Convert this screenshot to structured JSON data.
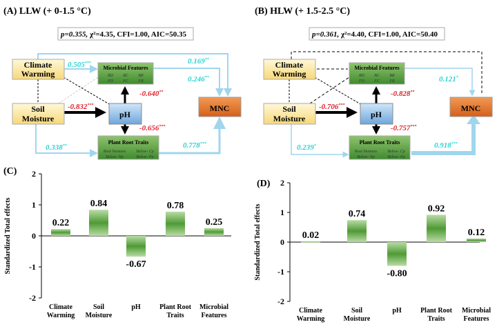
{
  "panels": [
    {
      "title": "(A) LLW (+ 0-1.5 °C)",
      "stat_p": "p=0.355,",
      "stat_rest": " χ²=4.35, CFI=1.00, AIC=50.35",
      "paths": {
        "cw_mf": "0.505",
        "cw_mf_sig": "***",
        "cw_mnc": "0.169",
        "cw_mnc_sig": "**",
        "mf_mnc": "0.246",
        "mf_mnc_sig": "**",
        "sm_ph": "-0.832",
        "sm_ph_sig": "***",
        "ph_mf": "-0.640",
        "ph_mf_sig": "**",
        "ph_prt": "-0.656",
        "ph_prt_sig": "***",
        "sm_prt": "0.338",
        "sm_prt_sig": "**",
        "prt_mnc": "0.778",
        "prt_mnc_sig": "***"
      }
    },
    {
      "title": "(B) HLW (+ 1.5-2.5 °C)",
      "stat_p": "p=0.361,",
      "stat_rest": " χ²=4.40, CFI=1.00, AIC=50.40",
      "paths": {
        "mf_mnc": "0.121",
        "mf_mnc_sig": "*",
        "sm_ph": "-0.706",
        "sm_ph_sig": "***",
        "ph_mf": "-0.828",
        "ph_mf_sig": "**",
        "ph_prt": "-0.757",
        "ph_prt_sig": "***",
        "sm_prt": "0.239",
        "sm_prt_sig": "*",
        "prt_mnc": "0.918",
        "prt_mnc_sig": "***"
      }
    }
  ],
  "nodes": {
    "cw1": "Climate",
    "cw2": "Warming",
    "sm1": "Soil",
    "sm2": "Moisture",
    "ph": "pH",
    "mnc": "MNC",
    "mf": "Microbial Features",
    "mf_sub": [
      "BD",
      "BC",
      "BR",
      "FD",
      "FC",
      "FR"
    ],
    "prt": "Plant Root Traits",
    "prt_sub": [
      "Root biomass",
      "Below- Cp",
      "Below- Np",
      "Below- Pp"
    ]
  },
  "colors": {
    "positive": "#9fd6ee",
    "negative": "#000000",
    "cyan_label": "#29d3d3",
    "red_label": "#e0202a",
    "bar": "#5aa33c"
  },
  "chart_data": [
    {
      "type": "bar",
      "title": "(C)",
      "ylabel": "Standardized Total effects",
      "ylim": [
        -2,
        2
      ],
      "yticks": [
        "2",
        "1",
        "0",
        "-1",
        "-2"
      ],
      "categories": [
        [
          "Climate",
          "Warming"
        ],
        [
          "Soil",
          "Moisture"
        ],
        [
          "pH",
          ""
        ],
        [
          "Plant Root",
          "Traits"
        ],
        [
          "Microbial",
          "Features"
        ]
      ],
      "values": [
        0.22,
        0.84,
        -0.67,
        0.78,
        0.25
      ],
      "labels": [
        "0.22",
        "0.84",
        "-0.67",
        "0.78",
        "0.25"
      ]
    },
    {
      "type": "bar",
      "title": "(D)",
      "ylabel": "Standardized Total effects",
      "ylim": [
        -2,
        2
      ],
      "yticks": [
        "2",
        "1",
        "0",
        "-1",
        "-2"
      ],
      "categories": [
        [
          "Climate",
          "Warming"
        ],
        [
          "Soil",
          "Moisture"
        ],
        [
          "pH",
          ""
        ],
        [
          "Plant Root",
          "Traits"
        ],
        [
          "Microbial",
          "Features"
        ]
      ],
      "values": [
        0.02,
        0.74,
        -0.8,
        0.92,
        0.12
      ],
      "labels": [
        "0.02",
        "0.74",
        "-0.80",
        "0.92",
        "0.12"
      ]
    }
  ]
}
